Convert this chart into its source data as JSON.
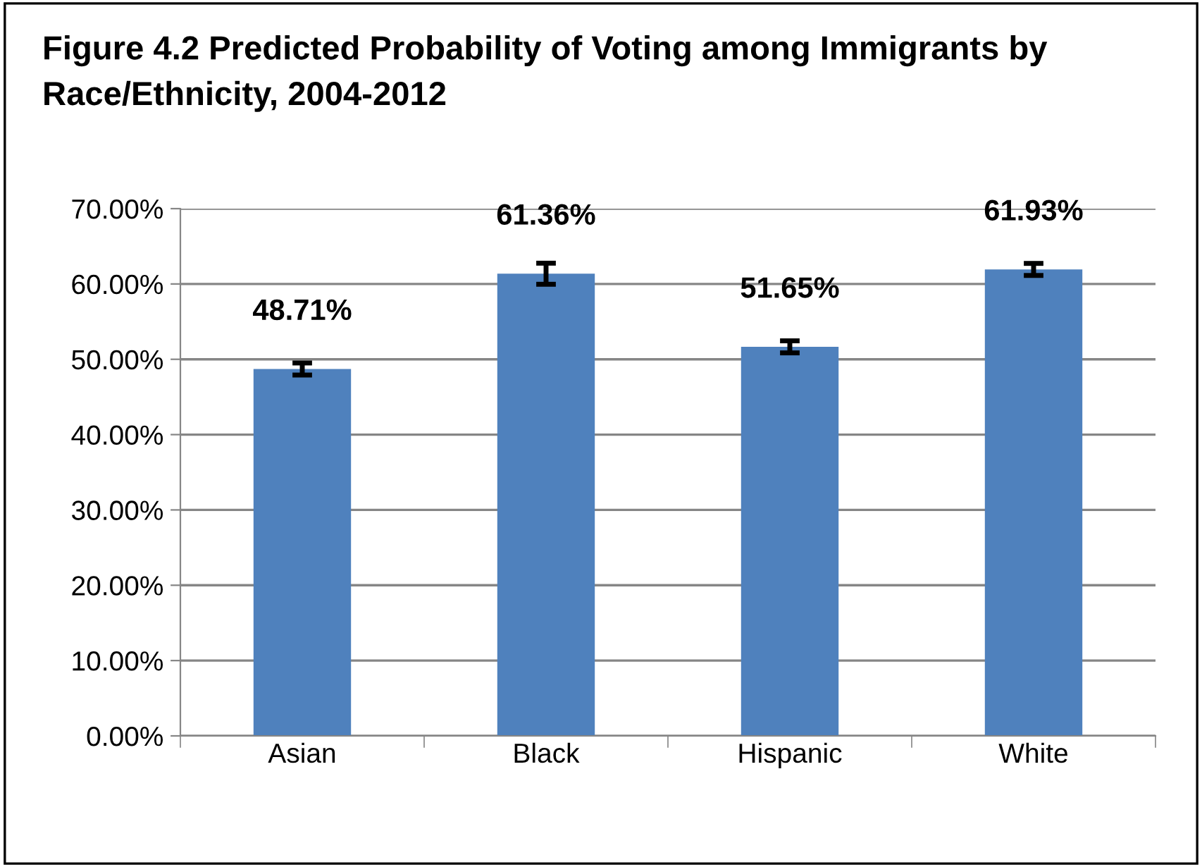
{
  "chart_data": {
    "type": "bar",
    "title": "Figure 4.2 Predicted Probability of Voting among Immigrants by Race/Ethnicity, 2004-2012",
    "categories": [
      "Asian",
      "Black",
      "Hispanic",
      "White"
    ],
    "values": [
      48.71,
      61.36,
      51.65,
      61.93
    ],
    "errors": [
      0.8,
      1.4,
      0.8,
      0.8
    ],
    "value_labels": [
      "48.71%",
      "61.36%",
      "51.65%",
      "61.93%"
    ],
    "color": "#4f81bd",
    "ylim": [
      0,
      70
    ],
    "yticks": [
      {
        "value": 0,
        "label": "0.00%"
      },
      {
        "value": 10,
        "label": "10.00%"
      },
      {
        "value": 20,
        "label": "20.00%"
      },
      {
        "value": 30,
        "label": "30.00%"
      },
      {
        "value": 40,
        "label": "40.00%"
      },
      {
        "value": 50,
        "label": "50.00%"
      },
      {
        "value": 60,
        "label": "60.00%"
      },
      {
        "value": 70,
        "label": "70.00%"
      }
    ],
    "grid": "y"
  }
}
